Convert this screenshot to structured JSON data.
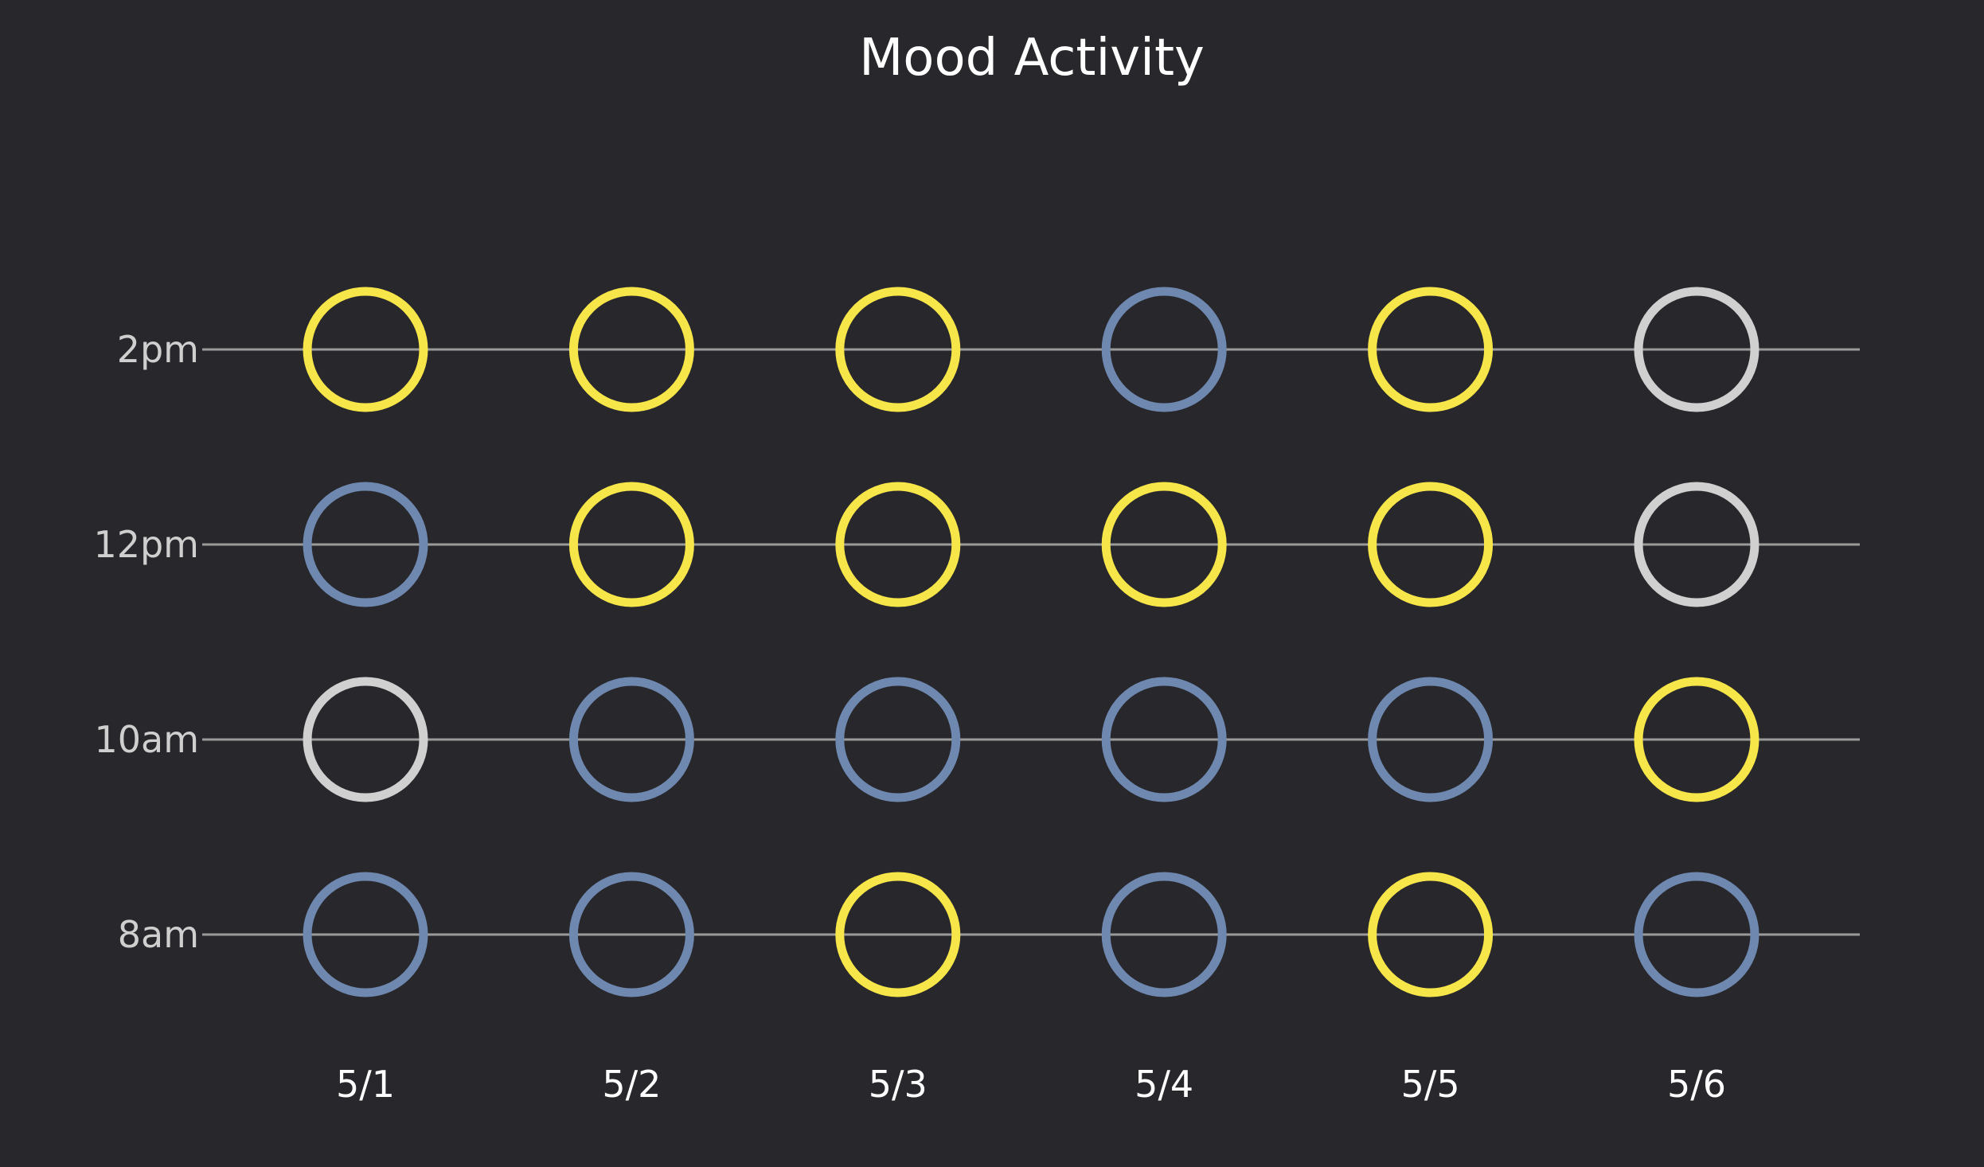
{
  "chart_data": {
    "type": "scatter",
    "title": "Mood Activity",
    "xlabel": "",
    "ylabel": "",
    "categories": [
      "5/1",
      "5/2",
      "5/3",
      "5/4",
      "5/5",
      "5/6"
    ],
    "rows": [
      "2pm",
      "12pm",
      "10am",
      "8am"
    ],
    "mood_colors": {
      "yellow": "#f7e64a",
      "blue": "#6f88b0",
      "gray": "#d0d0d0"
    },
    "values": [
      [
        "yellow",
        "yellow",
        "yellow",
        "blue",
        "yellow",
        "gray"
      ],
      [
        "blue",
        "yellow",
        "yellow",
        "yellow",
        "yellow",
        "gray"
      ],
      [
        "gray",
        "blue",
        "blue",
        "blue",
        "blue",
        "yellow"
      ],
      [
        "blue",
        "blue",
        "yellow",
        "blue",
        "yellow",
        "blue"
      ]
    ],
    "grid": false,
    "legend": "none"
  }
}
